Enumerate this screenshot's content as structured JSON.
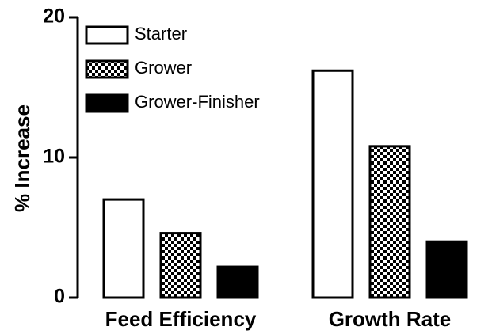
{
  "chart_data": {
    "type": "bar",
    "ylabel": "% Increase",
    "categories": [
      "Feed Efficiency",
      "Growth Rate"
    ],
    "series": [
      {
        "name": "Starter",
        "color": "#ffffff",
        "values": [
          7.0,
          16.2
        ]
      },
      {
        "name": "Grower",
        "color": "#000000",
        "pattern": "checkerboard",
        "values": [
          4.6,
          10.8
        ]
      },
      {
        "name": "Grower-Finisher",
        "color": "#000000",
        "values": [
          2.2,
          4.0
        ]
      }
    ],
    "ylim": [
      0,
      20
    ],
    "yticks": [
      0,
      10,
      20
    ],
    "grid": false,
    "legend": "top-left"
  }
}
